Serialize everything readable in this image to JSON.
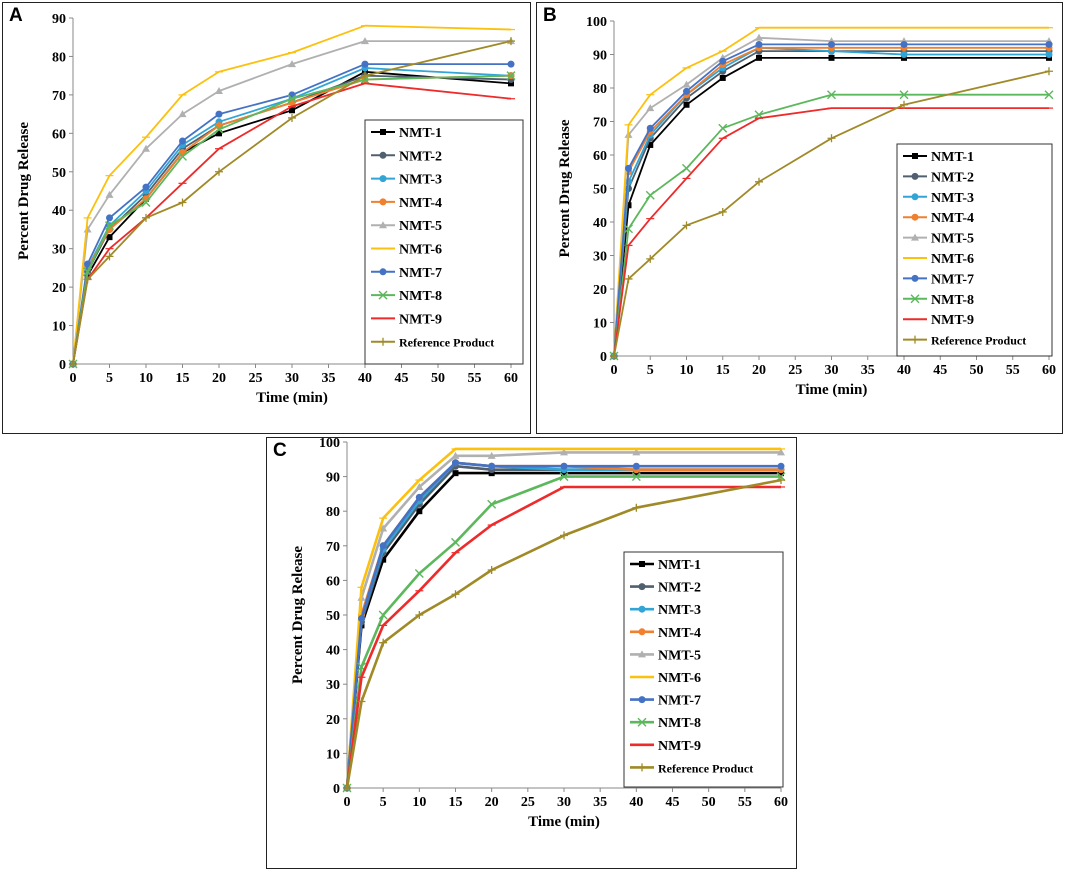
{
  "colors": {
    "NMT-1": "#000000",
    "NMT-2": "#50606f",
    "NMT-3": "#31a5d6",
    "NMT-4": "#f07f2e",
    "NMT-5": "#b0b0b0",
    "NMT-6": "#fcc00e",
    "NMT-7": "#4472c4",
    "NMT-8": "#5cb85c",
    "NMT-9": "#ee2a2a",
    "Reference Product": "#a08a28"
  },
  "chart_data": [
    {
      "panel_label": "A",
      "type": "line",
      "xlabel": "Time (min)",
      "ylabel": "Percent Drug Release",
      "xlim": [
        0,
        60
      ],
      "ylim": [
        0,
        90
      ],
      "x_ticks": [
        "0",
        "5",
        "10",
        "15",
        "20",
        "25",
        "30",
        "35",
        "40",
        "45",
        "50",
        "55",
        "60"
      ],
      "y_ticks": [
        "0",
        "10",
        "20",
        "30",
        "40",
        "50",
        "60",
        "70",
        "80",
        "90"
      ],
      "x": [
        0,
        2,
        5,
        10,
        15,
        20,
        30,
        40,
        60
      ],
      "legend": [
        "NMT-1",
        "NMT-2",
        "NMT-3",
        "NMT-4",
        "NMT-5",
        "NMT-6",
        "NMT-7",
        "NMT-8",
        "NMT-9",
        "Reference Product"
      ],
      "series": [
        {
          "name": "NMT-1",
          "values": [
            0,
            23,
            33,
            43,
            55,
            60,
            66,
            76,
            73
          ]
        },
        {
          "name": "NMT-2",
          "values": [
            0,
            24,
            35,
            44,
            56,
            62,
            68,
            75,
            74
          ]
        },
        {
          "name": "NMT-3",
          "values": [
            0,
            25,
            36,
            45,
            57,
            63,
            69,
            77,
            75
          ]
        },
        {
          "name": "NMT-4",
          "values": [
            0,
            25,
            35,
            43,
            55,
            62,
            68,
            74,
            75
          ]
        },
        {
          "name": "NMT-5",
          "values": [
            0,
            35,
            44,
            56,
            65,
            71,
            78,
            84,
            84
          ]
        },
        {
          "name": "NMT-6",
          "values": [
            0,
            38,
            49,
            59,
            70,
            76,
            81,
            88,
            87
          ]
        },
        {
          "name": "NMT-7",
          "values": [
            0,
            26,
            38,
            46,
            58,
            65,
            70,
            78,
            78
          ]
        },
        {
          "name": "NMT-8",
          "values": [
            0,
            24,
            36,
            42,
            54,
            61,
            69,
            74,
            75
          ]
        },
        {
          "name": "NMT-9",
          "values": [
            0,
            22,
            30,
            38,
            47,
            56,
            67,
            73,
            69
          ]
        },
        {
          "name": "Reference Product",
          "values": [
            0,
            22,
            28,
            38,
            42,
            50,
            64,
            75,
            84
          ]
        }
      ]
    },
    {
      "panel_label": "B",
      "type": "line",
      "xlabel": "Time (min)",
      "ylabel": "Percent Drug Release",
      "xlim": [
        0,
        60
      ],
      "ylim": [
        0,
        100
      ],
      "x_ticks": [
        "0",
        "5",
        "10",
        "15",
        "20",
        "25",
        "30",
        "35",
        "40",
        "45",
        "50",
        "55",
        "60"
      ],
      "y_ticks": [
        "0",
        "10",
        "20",
        "30",
        "40",
        "50",
        "60",
        "70",
        "80",
        "90",
        "100"
      ],
      "x": [
        0,
        2,
        5,
        10,
        15,
        20,
        30,
        40,
        60
      ],
      "legend": [
        "NMT-1",
        "NMT-2",
        "NMT-3",
        "NMT-4",
        "NMT-5",
        "NMT-6",
        "NMT-7",
        "NMT-8",
        "NMT-9",
        "Reference Product"
      ],
      "series": [
        {
          "name": "NMT-1",
          "values": [
            0,
            45,
            63,
            75,
            83,
            89,
            89,
            89,
            89
          ]
        },
        {
          "name": "NMT-2",
          "values": [
            0,
            50,
            65,
            77,
            85,
            91,
            91,
            91,
            91
          ]
        },
        {
          "name": "NMT-3",
          "values": [
            0,
            52,
            66,
            78,
            86,
            92,
            91,
            90,
            90
          ]
        },
        {
          "name": "NMT-4",
          "values": [
            0,
            55,
            67,
            78,
            87,
            92,
            92,
            92,
            92
          ]
        },
        {
          "name": "NMT-5",
          "values": [
            0,
            66,
            74,
            81,
            89,
            95,
            94,
            94,
            94
          ]
        },
        {
          "name": "NMT-6",
          "values": [
            0,
            69,
            78,
            86,
            91,
            98,
            98,
            98,
            98
          ]
        },
        {
          "name": "NMT-7",
          "values": [
            0,
            56,
            68,
            79,
            88,
            93,
            93,
            93,
            93
          ]
        },
        {
          "name": "NMT-8",
          "values": [
            0,
            38,
            48,
            56,
            68,
            72,
            78,
            78,
            78
          ]
        },
        {
          "name": "NMT-9",
          "values": [
            0,
            33,
            41,
            53,
            65,
            71,
            74,
            74,
            74
          ]
        },
        {
          "name": "Reference Product",
          "values": [
            0,
            23,
            29,
            39,
            43,
            52,
            65,
            75,
            85
          ]
        }
      ]
    },
    {
      "panel_label": "C",
      "type": "line",
      "xlabel": "Time (min)",
      "ylabel": "Percent Drug Release",
      "xlim": [
        0,
        60
      ],
      "ylim": [
        0,
        100
      ],
      "x_ticks": [
        "0",
        "5",
        "10",
        "15",
        "20",
        "25",
        "30",
        "35",
        "40",
        "45",
        "50",
        "55",
        "60"
      ],
      "y_ticks": [
        "0",
        "10",
        "20",
        "30",
        "40",
        "50",
        "60",
        "70",
        "80",
        "90",
        "100"
      ],
      "x": [
        0,
        2,
        5,
        10,
        15,
        20,
        30,
        40,
        60
      ],
      "legend": [
        "NMT-1",
        "NMT-2",
        "NMT-3",
        "NMT-4",
        "NMT-5",
        "NMT-6",
        "NMT-7",
        "NMT-8",
        "NMT-9",
        "Reference Product"
      ],
      "series": [
        {
          "name": "NMT-1",
          "values": [
            0,
            47,
            66,
            80,
            91,
            91,
            91,
            91,
            91
          ]
        },
        {
          "name": "NMT-2",
          "values": [
            0,
            48,
            68,
            82,
            93,
            92,
            92,
            92,
            92
          ]
        },
        {
          "name": "NMT-3",
          "values": [
            0,
            49,
            69,
            83,
            94,
            93,
            92,
            92,
            92
          ]
        },
        {
          "name": "NMT-4",
          "values": [
            0,
            50,
            70,
            84,
            94,
            93,
            93,
            92,
            92
          ]
        },
        {
          "name": "NMT-5",
          "values": [
            0,
            55,
            75,
            87,
            96,
            96,
            97,
            97,
            97
          ]
        },
        {
          "name": "NMT-6",
          "values": [
            0,
            58,
            78,
            89,
            98,
            98,
            98,
            98,
            98
          ]
        },
        {
          "name": "NMT-7",
          "values": [
            0,
            49,
            70,
            84,
            94,
            93,
            93,
            93,
            93
          ]
        },
        {
          "name": "NMT-8",
          "values": [
            0,
            35,
            50,
            62,
            71,
            82,
            90,
            90,
            90
          ]
        },
        {
          "name": "NMT-9",
          "values": [
            0,
            32,
            47,
            57,
            68,
            76,
            87,
            87,
            87
          ]
        },
        {
          "name": "Reference Product",
          "values": [
            0,
            25,
            42,
            50,
            56,
            63,
            73,
            81,
            89
          ]
        }
      ]
    }
  ]
}
